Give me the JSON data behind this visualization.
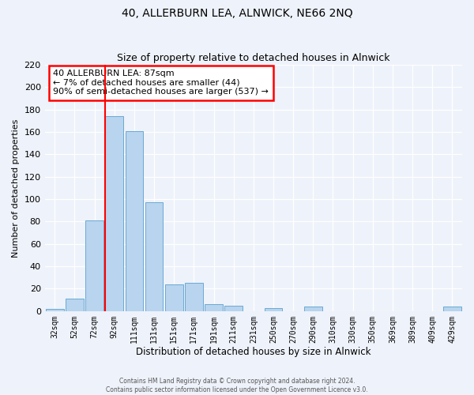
{
  "title": "40, ALLERBURN LEA, ALNWICK, NE66 2NQ",
  "subtitle": "Size of property relative to detached houses in Alnwick",
  "xlabel": "Distribution of detached houses by size in Alnwick",
  "ylabel": "Number of detached properties",
  "bar_labels": [
    "32sqm",
    "52sqm",
    "72sqm",
    "92sqm",
    "111sqm",
    "131sqm",
    "151sqm",
    "171sqm",
    "191sqm",
    "211sqm",
    "231sqm",
    "250sqm",
    "270sqm",
    "290sqm",
    "310sqm",
    "330sqm",
    "350sqm",
    "369sqm",
    "389sqm",
    "409sqm",
    "429sqm"
  ],
  "bar_values": [
    2,
    11,
    81,
    174,
    161,
    97,
    24,
    25,
    6,
    5,
    0,
    3,
    0,
    4,
    0,
    0,
    0,
    0,
    0,
    0,
    4
  ],
  "bar_color": "#b8d4ee",
  "bar_edge_color": "#6aaad4",
  "vline_color": "red",
  "annotation_title": "40 ALLERBURN LEA: 87sqm",
  "annotation_line1": "← 7% of detached houses are smaller (44)",
  "annotation_line2": "90% of semi-detached houses are larger (537) →",
  "annotation_box_color": "white",
  "annotation_box_edge": "red",
  "ylim": [
    0,
    220
  ],
  "yticks": [
    0,
    20,
    40,
    60,
    80,
    100,
    120,
    140,
    160,
    180,
    200,
    220
  ],
  "footer1": "Contains HM Land Registry data © Crown copyright and database right 2024.",
  "footer2": "Contains public sector information licensed under the Open Government Licence v3.0.",
  "bg_color": "#eef2fa",
  "grid_color": "#d0d8e8"
}
